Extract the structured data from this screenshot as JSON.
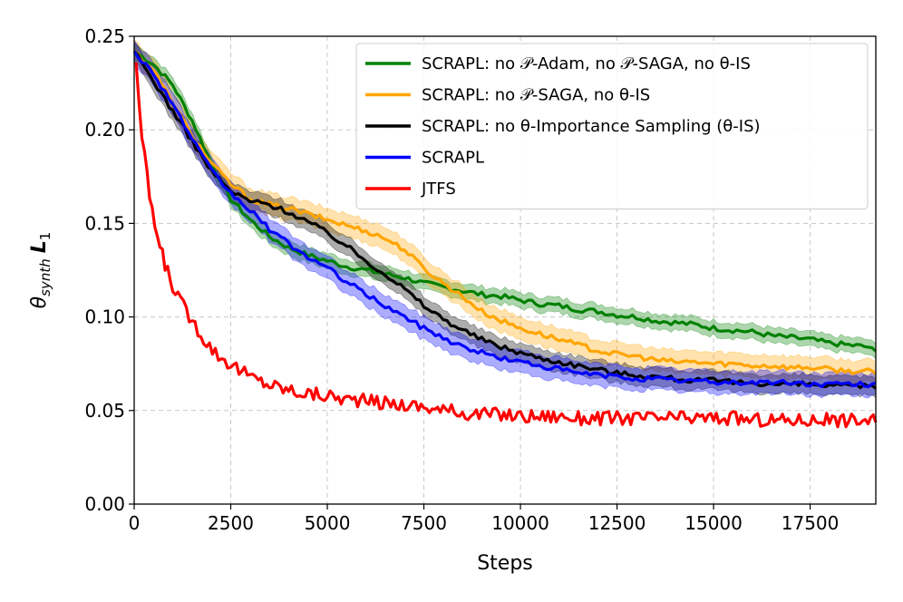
{
  "chart_data": {
    "type": "line",
    "title": "",
    "xlabel": "Steps",
    "ylabel": "θ_synth L_1",
    "ylabel_parts": {
      "theta": "θ",
      "sub": "synth",
      "L": "L",
      "sub2": "1"
    },
    "xlim": [
      0,
      19200
    ],
    "ylim": [
      0.0,
      0.25
    ],
    "xticks": [
      0,
      2500,
      5000,
      7500,
      10000,
      12500,
      15000,
      17500
    ],
    "xtick_labels": [
      "0",
      "2500",
      "5000",
      "7500",
      "10000",
      "12500",
      "15000",
      "17500"
    ],
    "yticks": [
      0.0,
      0.05,
      0.1,
      0.15,
      0.2,
      0.25
    ],
    "ytick_labels": [
      "0.00",
      "0.05",
      "0.10",
      "0.15",
      "0.20",
      "0.25"
    ],
    "grid": true,
    "legend_position": "top-right",
    "series": [
      {
        "name": "SCRAPL: no 𝒫-Adam, no 𝒫-SAGA, no θ-IS",
        "color": "#008000",
        "band": 0.004,
        "x": [
          0,
          500,
          1000,
          1500,
          2000,
          2500,
          3000,
          3500,
          4000,
          4500,
          5000,
          5500,
          6000,
          6500,
          7000,
          7500,
          8000,
          8500,
          9000,
          9500,
          10000,
          10500,
          11000,
          11500,
          12000,
          12500,
          13000,
          13500,
          14000,
          14500,
          15000,
          15500,
          16000,
          16500,
          17000,
          17500,
          18000,
          18500,
          19000,
          19200
        ],
        "y": [
          0.242,
          0.235,
          0.224,
          0.205,
          0.182,
          0.163,
          0.152,
          0.143,
          0.137,
          0.133,
          0.13,
          0.127,
          0.125,
          0.123,
          0.121,
          0.118,
          0.116,
          0.114,
          0.112,
          0.111,
          0.109,
          0.107,
          0.106,
          0.104,
          0.103,
          0.101,
          0.1,
          0.098,
          0.097,
          0.096,
          0.094,
          0.093,
          0.092,
          0.09,
          0.089,
          0.088,
          0.086,
          0.085,
          0.084,
          0.081
        ]
      },
      {
        "name": "SCRAPL: no 𝒫-SAGA, no θ-IS",
        "color": "#FFA500",
        "band": 0.006,
        "x": [
          0,
          500,
          1000,
          1500,
          2000,
          2500,
          3000,
          3500,
          4000,
          4500,
          5000,
          5500,
          6000,
          6500,
          7000,
          7500,
          8000,
          8500,
          9000,
          9500,
          10000,
          10500,
          11000,
          11500,
          12000,
          12500,
          13000,
          13500,
          14000,
          14500,
          15000,
          15500,
          16000,
          16500,
          17000,
          17500,
          18000,
          18500,
          19000,
          19200
        ],
        "y": [
          0.242,
          0.232,
          0.214,
          0.197,
          0.182,
          0.171,
          0.163,
          0.16,
          0.158,
          0.155,
          0.152,
          0.149,
          0.146,
          0.142,
          0.136,
          0.126,
          0.118,
          0.111,
          0.103,
          0.098,
          0.094,
          0.091,
          0.088,
          0.085,
          0.082,
          0.08,
          0.079,
          0.077,
          0.076,
          0.076,
          0.075,
          0.075,
          0.074,
          0.074,
          0.073,
          0.073,
          0.072,
          0.071,
          0.071,
          0.07
        ]
      },
      {
        "name": "SCRAPL: no θ-Importance Sampling (θ-IS)",
        "color": "#000000",
        "band": 0.005,
        "x": [
          0,
          500,
          1000,
          1500,
          2000,
          2500,
          3000,
          3500,
          4000,
          4500,
          5000,
          5500,
          6000,
          6500,
          7000,
          7500,
          8000,
          8500,
          9000,
          9500,
          10000,
          10500,
          11000,
          11500,
          12000,
          12500,
          13000,
          13500,
          14000,
          14500,
          15000,
          15500,
          16000,
          16500,
          17000,
          17500,
          18000,
          18500,
          19000,
          19200
        ],
        "y": [
          0.242,
          0.226,
          0.21,
          0.194,
          0.178,
          0.167,
          0.162,
          0.16,
          0.156,
          0.151,
          0.145,
          0.138,
          0.13,
          0.123,
          0.115,
          0.106,
          0.099,
          0.093,
          0.088,
          0.084,
          0.081,
          0.078,
          0.076,
          0.074,
          0.072,
          0.07,
          0.069,
          0.068,
          0.067,
          0.066,
          0.066,
          0.065,
          0.065,
          0.064,
          0.064,
          0.064,
          0.063,
          0.063,
          0.063,
          0.063
        ]
      },
      {
        "name": "SCRAPL",
        "color": "#0000FF",
        "band": 0.006,
        "x": [
          0,
          500,
          1000,
          1500,
          2000,
          2500,
          3000,
          3500,
          4000,
          4500,
          5000,
          5500,
          6000,
          6500,
          7000,
          7500,
          8000,
          8500,
          9000,
          9500,
          10000,
          10500,
          11000,
          11500,
          12000,
          12500,
          13000,
          13500,
          14000,
          14500,
          15000,
          15500,
          16000,
          16500,
          17000,
          17500,
          18000,
          18500,
          19000,
          19200
        ],
        "y": [
          0.242,
          0.23,
          0.214,
          0.195,
          0.178,
          0.166,
          0.157,
          0.147,
          0.139,
          0.132,
          0.126,
          0.119,
          0.112,
          0.106,
          0.1,
          0.094,
          0.089,
          0.084,
          0.081,
          0.078,
          0.076,
          0.074,
          0.072,
          0.07,
          0.069,
          0.068,
          0.067,
          0.067,
          0.066,
          0.066,
          0.065,
          0.065,
          0.065,
          0.065,
          0.065,
          0.064,
          0.064,
          0.064,
          0.064,
          0.064
        ]
      },
      {
        "name": "JTFS",
        "color": "#FF0000",
        "band": 0,
        "x": [
          50,
          200,
          400,
          600,
          800,
          1000,
          1200,
          1500,
          1800,
          2100,
          2500,
          3000,
          3500,
          4000,
          4500,
          5000,
          5500,
          6000,
          6500,
          7000,
          7500,
          8000,
          8500,
          9000,
          9500,
          10000,
          10500,
          11000,
          11500,
          12000,
          12500,
          13000,
          13500,
          14000,
          14500,
          15000,
          15500,
          16000,
          16500,
          17000,
          17500,
          18000,
          18500,
          19000,
          19200
        ],
        "y": [
          0.236,
          0.195,
          0.165,
          0.142,
          0.128,
          0.117,
          0.108,
          0.098,
          0.089,
          0.081,
          0.075,
          0.068,
          0.064,
          0.061,
          0.059,
          0.058,
          0.056,
          0.055,
          0.054,
          0.053,
          0.052,
          0.05,
          0.049,
          0.048,
          0.048,
          0.047,
          0.047,
          0.047,
          0.046,
          0.046,
          0.046,
          0.046,
          0.046,
          0.046,
          0.046,
          0.046,
          0.046,
          0.045,
          0.045,
          0.045,
          0.045,
          0.045,
          0.045,
          0.045,
          0.045
        ]
      }
    ]
  }
}
